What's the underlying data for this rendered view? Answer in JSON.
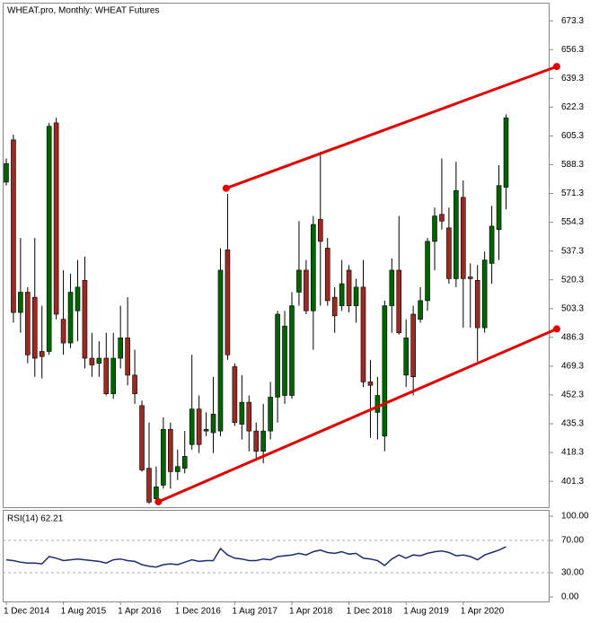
{
  "chart_data": [
    {
      "type": "candlestick",
      "title": "WHEAT.pro, Monthly:  WHEAT Futures",
      "categories": [
        "1 Dec 2014",
        null,
        null,
        null,
        null,
        null,
        null,
        null,
        "1 Aug 2015",
        null,
        null,
        null,
        null,
        null,
        null,
        null,
        "1 Apr 2016",
        null,
        null,
        null,
        null,
        null,
        null,
        null,
        "1 Dec 2016",
        null,
        null,
        null,
        null,
        null,
        null,
        null,
        "1 Aug 2017",
        null,
        null,
        null,
        null,
        null,
        null,
        null,
        "1 Apr 2018",
        null,
        null,
        null,
        null,
        null,
        null,
        null,
        "1 Dec 2018",
        null,
        null,
        null,
        null,
        null,
        null,
        null,
        "1 Aug 2019",
        null,
        null,
        null,
        null,
        null,
        null,
        null,
        "1 Apr 2020",
        null,
        null,
        null,
        null,
        null,
        null
      ],
      "open": [
        578,
        603,
        501,
        513,
        510,
        478,
        478,
        613,
        497,
        483,
        502,
        520,
        474,
        471,
        474,
        453,
        474,
        486,
        464,
        446,
        409,
        391,
        399,
        432,
        407,
        409,
        423,
        444,
        431,
        430,
        431,
        538,
        469,
        435,
        448,
        431,
        419,
        431,
        451,
        452,
        452,
        513,
        526,
        502,
        556,
        539,
        510,
        505,
        526,
        505,
        516,
        460,
        442,
        428,
        505,
        526,
        464,
        500,
        497,
        508,
        543,
        559,
        551,
        521,
        569,
        522,
        520,
        492,
        530,
        550,
        575
      ],
      "high": [
        592,
        606,
        545,
        516,
        545,
        505,
        613,
        616,
        526,
        524,
        532,
        534,
        489,
        484,
        489,
        489,
        505,
        510,
        479,
        449,
        436,
        410,
        439,
        436,
        420,
        431,
        476,
        452,
        442,
        463,
        539,
        571,
        471,
        464,
        452,
        436,
        447,
        460,
        502,
        502,
        513,
        555,
        532,
        558,
        596,
        545,
        516,
        532,
        529,
        521,
        532,
        473,
        463,
        508,
        533,
        558,
        497,
        505,
        516,
        545,
        563,
        592,
        563,
        590,
        579,
        530,
        529,
        537,
        564,
        588,
        618
      ],
      "low": [
        576,
        495,
        489,
        471,
        463,
        462,
        476,
        497,
        476,
        480,
        484,
        468,
        463,
        463,
        452,
        450,
        468,
        458,
        447,
        407,
        388,
        389,
        397,
        397,
        402,
        406,
        420,
        418,
        428,
        418,
        428,
        473,
        434,
        426,
        419,
        415,
        412,
        426,
        436,
        447,
        450,
        505,
        500,
        479,
        505,
        505,
        489,
        502,
        501,
        495,
        457,
        427,
        426,
        419,
        489,
        488,
        457,
        452,
        495,
        502,
        526,
        550,
        518,
        516,
        492,
        492,
        472,
        489,
        518,
        532,
        562
      ],
      "close": [
        589,
        501,
        513,
        476,
        474,
        475,
        611,
        500,
        483,
        513,
        516,
        474,
        470,
        474,
        453,
        474,
        486,
        464,
        453,
        408,
        389,
        398,
        432,
        407,
        410,
        416,
        444,
        423,
        432,
        441,
        526,
        476,
        436,
        448,
        431,
        419,
        431,
        451,
        500,
        493,
        505,
        526,
        502,
        553,
        543,
        508,
        499,
        518,
        505,
        516,
        460,
        458,
        452,
        505,
        526,
        489,
        486,
        463,
        508,
        543,
        558,
        555,
        521,
        573,
        521,
        521,
        492,
        532,
        552,
        576,
        616
      ],
      "up_color": "#006400",
      "down_color": "#9b2a22",
      "xlim": [
        -0.5,
        76.1
      ],
      "ylim": [
        386,
        684
      ],
      "yticks": [
        673.3,
        656.3,
        639.3,
        622.3,
        605.3,
        588.3,
        571.3,
        554.3,
        537.3,
        520.3,
        503.3,
        486.3,
        469.3,
        452.3,
        435.3,
        418.3,
        401.3
      ],
      "trendlines": [
        {
          "color": "#e60000",
          "points": [
            [
              30.8,
              574.4
            ],
            [
              77.1,
              646.3
            ]
          ]
        },
        {
          "color": "#e60000",
          "points": [
            [
              21.3,
              389.2
            ],
            [
              77.1,
              491.3
            ]
          ]
        }
      ]
    },
    {
      "type": "line",
      "title": "RSI(14) 62.21",
      "color": "#1c2a7a",
      "values": [
        46,
        45,
        43,
        42,
        42,
        41,
        50,
        48,
        45,
        46,
        47,
        46,
        45,
        44,
        42,
        46,
        47,
        45,
        44,
        40,
        38,
        37,
        40,
        41,
        40,
        43,
        46,
        44,
        45,
        45,
        60,
        52,
        48,
        47,
        45,
        45,
        47,
        46,
        50,
        51,
        52,
        54,
        52,
        56,
        58,
        55,
        54,
        56,
        53,
        54,
        48,
        47,
        45,
        39,
        47,
        52,
        48,
        52,
        51,
        54,
        56,
        57,
        55,
        51,
        52,
        50,
        46,
        52,
        55,
        58,
        62.21
      ],
      "ylim": [
        -5.6,
        107.8
      ],
      "yticks": [
        {
          "value": 100,
          "label": "100.00"
        },
        {
          "value": 70,
          "label": "70.00"
        },
        {
          "value": 30,
          "label": "30.00"
        },
        {
          "value": 0,
          "label": "0.00"
        }
      ]
    }
  ]
}
